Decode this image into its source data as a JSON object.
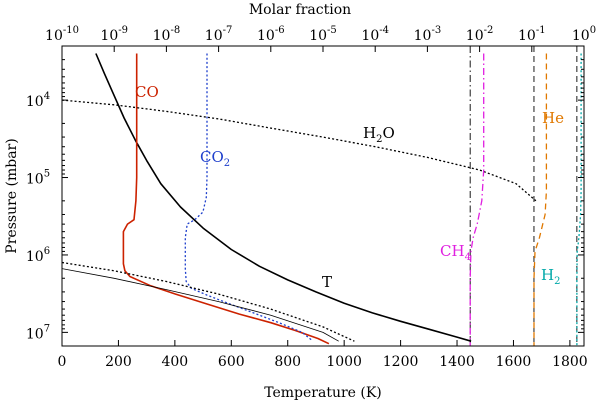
{
  "chart_data": {
    "type": "line",
    "title": "",
    "x_bottom": {
      "label": "Temperature (K)",
      "range": [
        0,
        1850
      ],
      "ticks": [
        0,
        200,
        400,
        600,
        800,
        1000,
        1200,
        1400,
        1600,
        1800
      ]
    },
    "x_top": {
      "label": "Molar fraction",
      "scale": "log",
      "range_exp": [
        -10,
        0
      ],
      "ticks": [
        {
          "base": "10",
          "exp": "-10"
        },
        {
          "base": "10",
          "exp": "-9"
        },
        {
          "base": "10",
          "exp": "-8"
        },
        {
          "base": "10",
          "exp": "-7"
        },
        {
          "base": "10",
          "exp": "-6"
        },
        {
          "base": "10",
          "exp": "-5"
        },
        {
          "base": "10",
          "exp": "-4"
        },
        {
          "base": "10",
          "exp": "-3"
        },
        {
          "base": "10",
          "exp": "-2"
        },
        {
          "base": "10",
          "exp": "-1"
        },
        {
          "base": "10",
          "exp": "0"
        }
      ]
    },
    "y": {
      "label": "Pressure (mbar)",
      "scale": "log",
      "inverted": true,
      "range": [
        2000,
        15000000
      ],
      "ticks": [
        {
          "base": "10",
          "exp": "4",
          "value": 10000
        },
        {
          "base": "10",
          "exp": "5",
          "value": 100000
        },
        {
          "base": "10",
          "exp": "6",
          "value": 1000000
        },
        {
          "base": "10",
          "exp": "7",
          "value": 10000000
        }
      ]
    },
    "series": [
      {
        "name": "T",
        "axis": "temperature",
        "color": "#000000",
        "style": "solid",
        "x": [
          120,
          150,
          180,
          220,
          260,
          300,
          350,
          420,
          500,
          600,
          700,
          800,
          900,
          1000,
          1100,
          1200,
          1300,
          1400,
          1450
        ],
        "y": [
          2500,
          4500,
          8000,
          17000,
          33000,
          60000,
          120000,
          240000,
          450000,
          850000,
          1400000,
          2100000,
          3000000,
          4200000,
          5600000,
          7200000,
          9100000,
          11500000,
          13000000
        ]
      },
      {
        "name": "CO",
        "axis": "molar_fraction",
        "color": "#cc2200",
        "style": "solid",
        "x": [
          2.7e-09,
          2.7e-09,
          2.7e-09,
          2.6e-09,
          2.4e-09,
          1.8e-09,
          1.5e-09,
          1.5e-09,
          1.5e-09,
          1.6e-09,
          2e-09,
          5e-09,
          1.5e-08,
          6e-08,
          2.5e-07,
          1e-06,
          3e-06,
          8e-06,
          1.3e-05
        ],
        "y": [
          2500,
          10000,
          100000,
          200000,
          350000,
          400000,
          500000,
          800000,
          1300000,
          1600000,
          1900000,
          2500000,
          3200000,
          4300000,
          5800000,
          7500000,
          9500000,
          12000000,
          14000000
        ]
      },
      {
        "name": "CO2",
        "axis": "molar_fraction",
        "color": "#1e3fcc",
        "style": "dotted",
        "x": [
          6e-08,
          6e-08,
          6e-08,
          5.8e-08,
          5e-08,
          3.5e-08,
          2.5e-08,
          2.3e-08,
          2.3e-08,
          2.4e-08,
          3e-08,
          6e-08,
          1.5e-07,
          5e-07,
          1.5e-06,
          4e-06,
          6e-06
        ],
        "y": [
          2500,
          10000,
          100000,
          180000,
          280000,
          350000,
          400000,
          600000,
          1500000,
          2200000,
          2700000,
          3300000,
          4200000,
          5700000,
          7600000,
          10000000,
          12500000
        ]
      },
      {
        "name": "H2O",
        "axis": "molar_fraction",
        "color": "#000000",
        "style": "dotted",
        "x": [
          1e-10,
          1e-09,
          1e-08,
          1e-07,
          1e-06,
          1e-05,
          0.0001,
          0.001,
          0.01,
          0.05,
          0.12
        ],
        "y": [
          10000,
          11500,
          14000,
          17500,
          23000,
          30000,
          40000,
          55000,
          80000,
          120000,
          200000
        ]
      },
      {
        "name": "",
        "axis": "molar_fraction",
        "color": "#000000",
        "style": "dotted",
        "x": [
          1e-10,
          1e-09,
          1e-08,
          1e-07,
          1e-06,
          1e-05,
          4e-05
        ],
        "y": [
          1250000,
          1600000,
          2200000,
          3200000,
          5000000,
          8500000,
          13000000
        ]
      },
      {
        "name": "",
        "axis": "molar_fraction",
        "color": "#000000",
        "style": "thin",
        "x": [
          1e-10,
          1e-09,
          1e-08,
          1e-07,
          1e-06,
          1e-05,
          2e-05
        ],
        "y": [
          1500000,
          2000000,
          2800000,
          4000000,
          6000000,
          10000000,
          13000000
        ]
      },
      {
        "name": "CH4",
        "axis": "molar_fraction",
        "color": "#e020e0",
        "style": "dashdot",
        "x": [
          0.012,
          0.012,
          0.011,
          0.009,
          0.0075,
          0.0068,
          0.0066,
          0.0066
        ],
        "y": [
          2500,
          80000,
          200000,
          400000,
          600000,
          900000,
          2000000,
          15000000
        ]
      },
      {
        "name": "He",
        "axis": "molar_fraction",
        "color": "#e07800",
        "style": "dashed",
        "x": [
          0.19,
          0.19,
          0.18,
          0.14,
          0.115,
          0.11,
          0.11
        ],
        "y": [
          2500,
          150000,
          300000,
          600000,
          900000,
          2000000,
          15000000
        ]
      },
      {
        "name": "H2",
        "axis": "molar_fraction",
        "color": "#00a8a8",
        "style": "dotted",
        "x": [
          0.88,
          0.88,
          0.86,
          0.8,
          0.74,
          0.73,
          0.73
        ],
        "y": [
          2500,
          150000,
          300000,
          600000,
          900000,
          2000000,
          15000000
        ]
      }
    ],
    "vertical_lines": [
      {
        "axis": "molar_fraction",
        "x": 0.0066,
        "style": "dashdot-thin",
        "color": "#000000"
      },
      {
        "axis": "molar_fraction",
        "x": 0.11,
        "style": "dashed-thin",
        "color": "#000000"
      },
      {
        "axis": "molar_fraction",
        "x": 0.73,
        "style": "dashed-thin",
        "color": "#000000"
      }
    ],
    "annotations": [
      {
        "text": "CO",
        "sub": "",
        "color": "#cc2200"
      },
      {
        "text": "CO",
        "sub": "2",
        "color": "#1e3fcc"
      },
      {
        "text": "H",
        "sub": "2",
        "tail": "O",
        "color": "#000000"
      },
      {
        "text": "T",
        "sub": "",
        "color": "#000000"
      },
      {
        "text": "CH",
        "sub": "4",
        "color": "#e020e0"
      },
      {
        "text": "He",
        "sub": "",
        "color": "#e07800"
      },
      {
        "text": "H",
        "sub": "2",
        "color": "#00a8a8"
      }
    ]
  }
}
